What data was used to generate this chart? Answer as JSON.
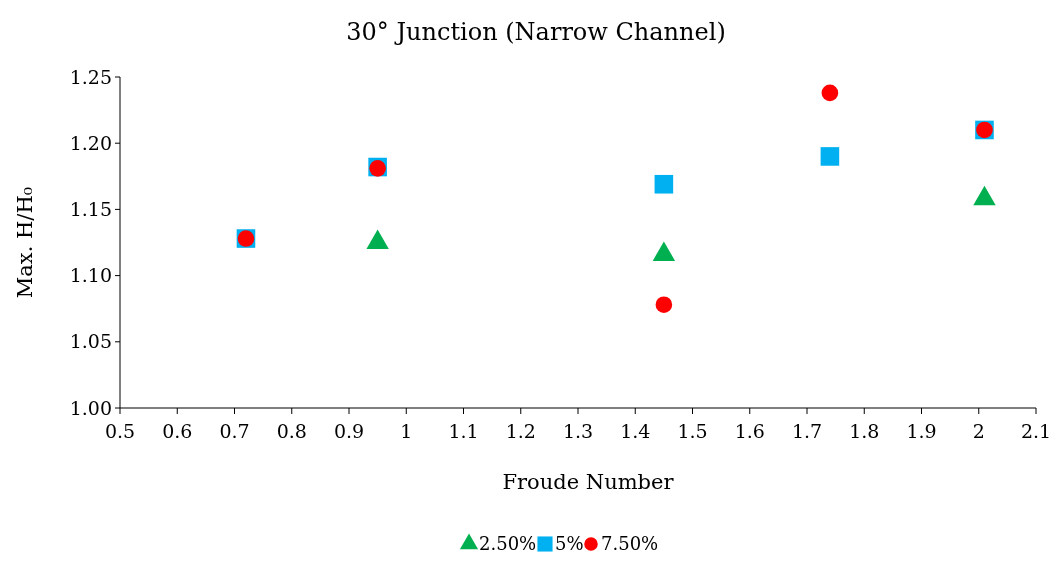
{
  "chart_data": {
    "type": "scatter",
    "title": "30° Junction (Narrow Channel)",
    "xlabel": "Froude Number",
    "ylabel": "Max. H/H₀",
    "xlim": [
      0.5,
      2.1
    ],
    "xticks": [
      0.5,
      0.6,
      0.7,
      0.8,
      0.9,
      1,
      1.1,
      1.2,
      1.3,
      1.4,
      1.5,
      1.6,
      1.7,
      1.8,
      1.9,
      2,
      2.1
    ],
    "ylim": [
      1,
      1.25
    ],
    "yticks": [
      {
        "value": 1,
        "label": "1.00"
      },
      {
        "value": 1.05,
        "label": "1.05"
      },
      {
        "value": 1.1,
        "label": "1.10"
      },
      {
        "value": 1.15,
        "label": "1.15"
      },
      {
        "value": 1.2,
        "label": "1.20"
      },
      {
        "value": 1.25,
        "label": "1.25"
      }
    ],
    "grid": false,
    "legend": "bottom",
    "series": [
      {
        "name": "2.50%",
        "color": "#00b050",
        "marker": "triangle",
        "x": [
          0.95,
          1.45,
          2.01
        ],
        "values": [
          1.125,
          1.116,
          1.158
        ]
      },
      {
        "name": "5%",
        "color": "#00b0f0",
        "marker": "square",
        "x": [
          0.72,
          0.95,
          1.45,
          1.74,
          2.01
        ],
        "values": [
          1.128,
          1.182,
          1.169,
          1.19,
          1.21
        ]
      },
      {
        "name": "7.50%",
        "color": "#ff0000",
        "marker": "circle",
        "x": [
          0.72,
          0.95,
          1.45,
          1.74,
          2.01
        ],
        "values": [
          1.128,
          1.181,
          1.078,
          1.238,
          1.21
        ]
      }
    ]
  }
}
